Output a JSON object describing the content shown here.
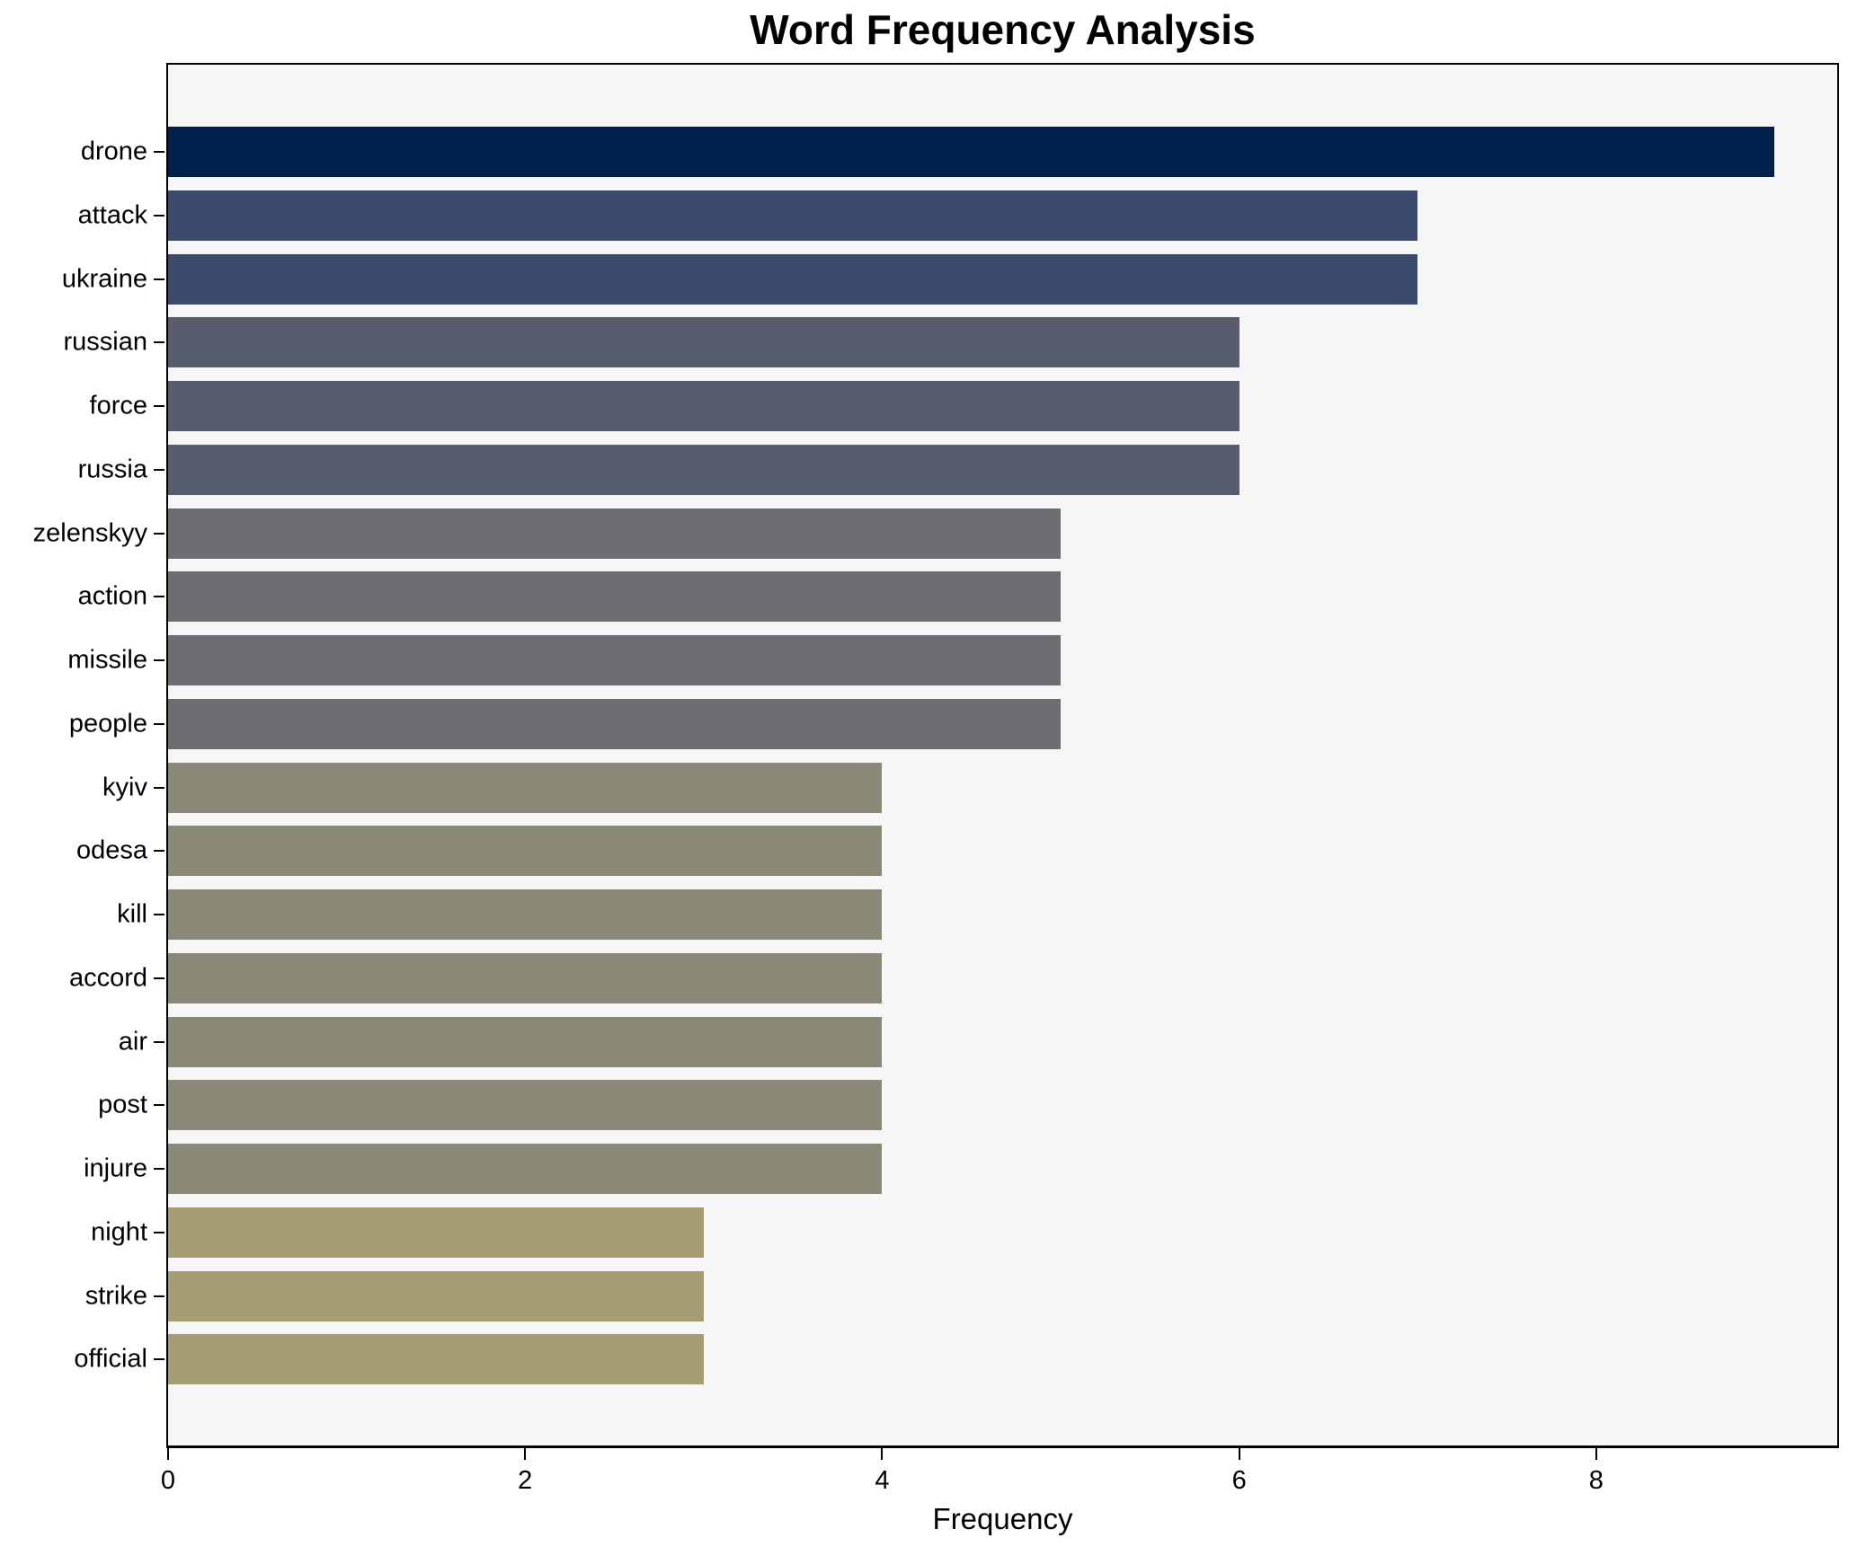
{
  "title": "Word Frequency Analysis",
  "chart_data": {
    "type": "bar",
    "orientation": "horizontal",
    "title": "Word Frequency Analysis",
    "xlabel": "Frequency",
    "ylabel": "",
    "categories": [
      "drone",
      "attack",
      "ukraine",
      "russian",
      "force",
      "russia",
      "zelenskyy",
      "action",
      "missile",
      "people",
      "kyiv",
      "odesa",
      "kill",
      "accord",
      "air",
      "post",
      "injure",
      "night",
      "strike",
      "official"
    ],
    "values": [
      9,
      7,
      7,
      6,
      6,
      6,
      5,
      5,
      5,
      5,
      4,
      4,
      4,
      4,
      4,
      4,
      4,
      3,
      3,
      3
    ],
    "bar_colors": [
      "#00214d",
      "#3c4a6e",
      "#3c4a6e",
      "#575d6d",
      "#575d6d",
      "#575d6d",
      "#6d6e71",
      "#6d6e71",
      "#6d6e71",
      "#6d6e71",
      "#8a8877",
      "#8a8877",
      "#8a8877",
      "#8a8877",
      "#8a8877",
      "#8a8877",
      "#8a8877",
      "#a79d74",
      "#a79d74",
      "#a79d74"
    ],
    "value_color_map": {
      "9": "#00214d",
      "7": "#3c4a6e",
      "6": "#575d6d",
      "5": "#6d6e71",
      "4": "#8a8877",
      "3": "#a79d74"
    },
    "xlim": [
      0,
      9.35
    ],
    "xticks": [
      "0",
      "2",
      "4",
      "6",
      "8"
    ],
    "grid": false,
    "legend": null,
    "plot_background": "#f6f6f7",
    "figure_background": "#ffffff",
    "spine_color": "#000000"
  }
}
